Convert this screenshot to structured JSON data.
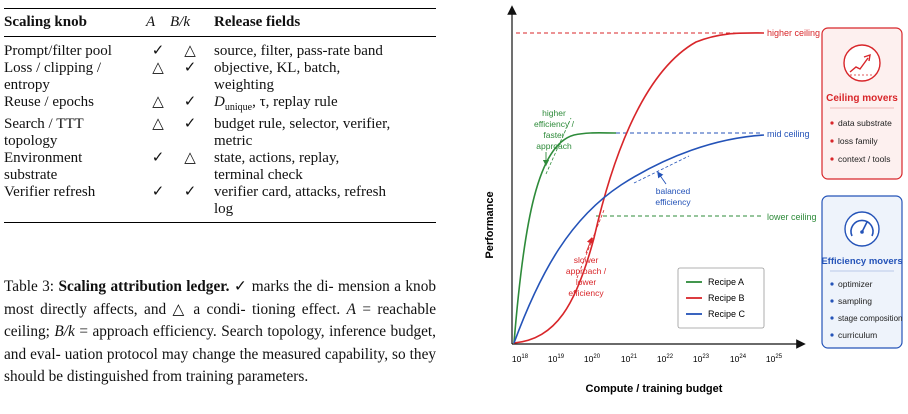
{
  "table": {
    "headers": {
      "knob": "Scaling knob",
      "a": "A",
      "bk": "B/k",
      "fields": "Release fields"
    },
    "rows": [
      {
        "knob_line1": "Prompt/filter pool",
        "knob_line2": "",
        "a": "✓",
        "bk": "△",
        "fields_line1": "source, filter, pass-rate band",
        "fields_line2": ""
      },
      {
        "knob_line1": "Loss / clipping /",
        "knob_line2": "entropy",
        "a": "△",
        "bk": "✓",
        "fields_line1": "objective, KL, batch,",
        "fields_line2": "weighting"
      },
      {
        "knob_line1": "Reuse / epochs",
        "knob_line2": "",
        "a": "△",
        "bk": "✓",
        "fields_pre": "D",
        "fields_sub": "unique",
        "fields_post": ", τ, replay rule"
      },
      {
        "knob_line1": "Search / TTT",
        "knob_line2": "topology",
        "a": "△",
        "bk": "✓",
        "fields_line1": "budget rule, selector, verifier,",
        "fields_line2": "metric"
      },
      {
        "knob_line1": "Environment",
        "knob_line2": "substrate",
        "a": "✓",
        "bk": "△",
        "fields_line1": "state, actions, replay,",
        "fields_line2": "terminal check"
      },
      {
        "knob_line1": "Verifier refresh",
        "knob_line2": "",
        "a": "✓",
        "bk": "✓",
        "fields_line1": "verifier card, attacks, refresh",
        "fields_line2": "log"
      }
    ]
  },
  "caption": {
    "label": "Table 3:",
    "title": "Scaling attribution ledger.",
    "check": "✓",
    "triangle": "△",
    "t1": "marks the di-",
    "t2": "mension a knob most directly affects, and",
    "t3": "a condi-",
    "t4": "tioning effect.",
    "a_var": "A",
    "t5": "= reachable ceiling;",
    "bk_var": "B/k",
    "t6": "= approach",
    "t7": "efficiency. Search topology, inference budget, and eval-",
    "t8": "uation protocol may change the measured capability, so",
    "t9": "they should be distinguished from training parameters."
  },
  "figure": {
    "ylabel": "Performance",
    "xlabel": "Compute / training budget",
    "xticks": [
      {
        "base": "10",
        "exp": "18"
      },
      {
        "base": "10",
        "exp": "19"
      },
      {
        "base": "10",
        "exp": "20"
      },
      {
        "base": "10",
        "exp": "21"
      },
      {
        "base": "10",
        "exp": "22"
      },
      {
        "base": "10",
        "exp": "23"
      },
      {
        "base": "10",
        "exp": "24"
      },
      {
        "base": "10",
        "exp": "25"
      }
    ],
    "ceilings": {
      "higher": "higher ceiling",
      "mid": "mid ceiling",
      "lower": "lower ceiling"
    },
    "annotations": {
      "green": [
        "higher",
        "efficiency /",
        "faster",
        "approach"
      ],
      "blue": [
        "balanced",
        "efficiency"
      ],
      "red": [
        "slower",
        "approach /",
        "lower",
        "efficiency"
      ]
    },
    "legend": [
      "Recipe A",
      "Recipe B",
      "Recipe C"
    ],
    "colors": {
      "green": "#2e8b3a",
      "red": "#d8262a",
      "blue": "#2453b8"
    },
    "ceiling_box": {
      "title": "Ceiling movers",
      "icon": "trend-up-icon",
      "items": [
        "data substrate",
        "loss family",
        "context / tools"
      ]
    },
    "efficiency_box": {
      "title": "Efficiency movers",
      "icon": "gauge-icon",
      "items": [
        "optimizer",
        "sampling",
        "stage composition",
        "curriculum"
      ]
    }
  }
}
